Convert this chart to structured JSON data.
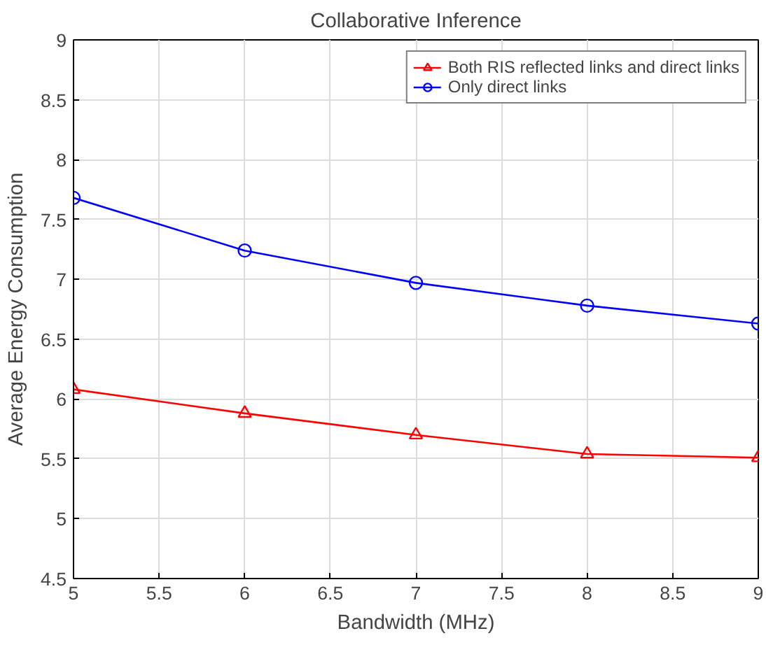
{
  "chart_data": {
    "type": "line",
    "title": "Collaborative Inference",
    "xlabel": "Bandwidth (MHz)",
    "ylabel": "Average Energy Consumption",
    "x": [
      5,
      6,
      7,
      8,
      9
    ],
    "series": [
      {
        "name": "Both RIS reflected links and direct links",
        "color": "#ff0000",
        "marker": "triangle",
        "values": [
          6.08,
          5.88,
          5.7,
          5.54,
          5.51
        ]
      },
      {
        "name": "Only direct links",
        "color": "#0000ff",
        "marker": "circle",
        "values": [
          7.68,
          7.24,
          6.97,
          6.78,
          6.63
        ]
      }
    ],
    "xlim": [
      5,
      9
    ],
    "xticks": [
      5,
      5.5,
      6,
      6.5,
      7,
      7.5,
      8,
      8.5,
      9
    ],
    "ylim": [
      4.5,
      9
    ],
    "yticks": [
      4.5,
      5,
      5.5,
      6,
      6.5,
      7,
      7.5,
      8,
      8.5,
      9
    ],
    "grid": true,
    "legend": "top right",
    "line_style": "solid"
  }
}
